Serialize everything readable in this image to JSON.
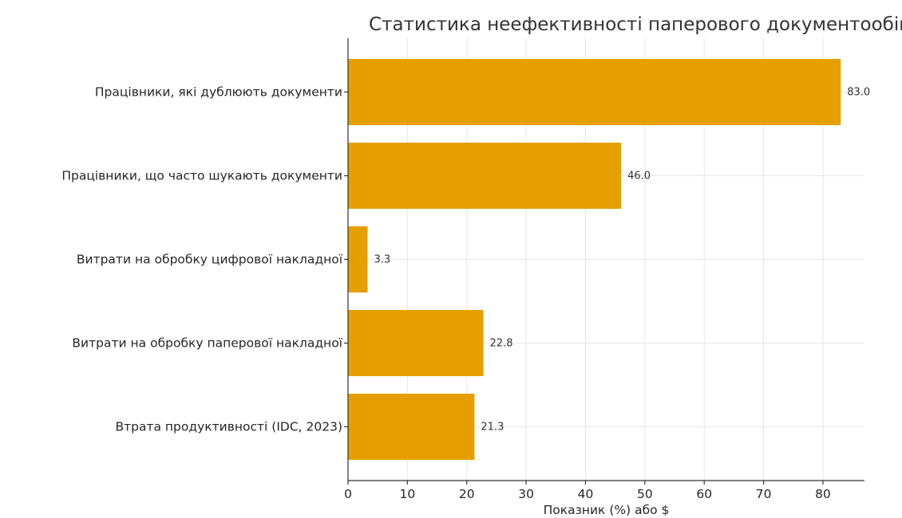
{
  "chart_data": {
    "type": "bar",
    "orientation": "horizontal",
    "title": "Статистика неефективності паперового документообігу",
    "xlabel": "Показник (%) або $",
    "ylabel": "",
    "xlim": [
      0,
      87
    ],
    "xticks": [
      0,
      10,
      20,
      30,
      40,
      50,
      60,
      70,
      80
    ],
    "grid": true,
    "bar_color": "#E69F00",
    "categories": [
      "Працівники, які дублюють документи",
      "Працівники, що часто шукають документи",
      "Витрати на обробку цифрової накладної",
      "Витрати на обробку паперової накладної",
      "Втрата продуктивності (IDC, 2023)"
    ],
    "values": [
      83.0,
      46.0,
      3.3,
      22.8,
      21.3
    ],
    "value_labels": [
      "83.0",
      "46.0",
      "3.3",
      "22.8",
      "21.3"
    ]
  }
}
